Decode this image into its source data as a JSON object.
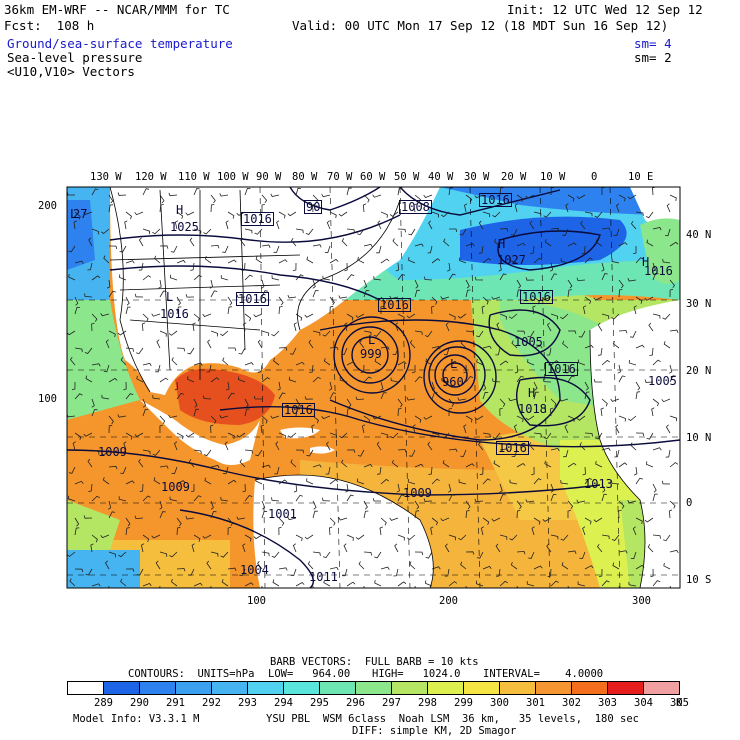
{
  "header": {
    "model": "36km EM-WRF -- NCAR/MMM for TC",
    "init": "Init: 12 UTC Wed 12 Sep 12",
    "fcst": "Fcst:  108 h",
    "valid": "Valid: 00 UTC Mon 17 Sep 12 (18 MDT Sun 16 Sep 12)"
  },
  "fields": [
    {
      "label": "Ground/sea-surface temperature",
      "sm": "sm= 4",
      "color": "#1a1acd"
    },
    {
      "label": "Sea-level pressure",
      "sm": "sm= 2",
      "color": "#000000"
    },
    {
      "label": "<U10,V10> Vectors",
      "sm": "",
      "color": "#000000"
    }
  ],
  "map": {
    "top_lon_labels": [
      "130 W",
      "120 W",
      "110 W",
      "100 W",
      "90 W",
      "80 W",
      "70 W",
      "60 W",
      "50 W",
      "40 W",
      "30 W",
      "20 W",
      "10 W",
      "0",
      "10 E"
    ],
    "right_lat_labels": [
      "40 N",
      "30 N",
      "20 N",
      "10 N",
      "0",
      "10 S"
    ],
    "left_grid_labels": [
      "200",
      "100"
    ],
    "bottom_grid_labels": [
      "100",
      "200",
      "300"
    ],
    "pressure_labels": [
      {
        "text": "H",
        "kind": "high"
      },
      {
        "text": "1025",
        "kind": "value"
      },
      {
        "text": "1016",
        "kind": "box"
      },
      {
        "text": "1008",
        "kind": "box"
      },
      {
        "text": "1016",
        "kind": "box"
      },
      {
        "text": "1016",
        "kind": "box"
      },
      {
        "text": "L",
        "kind": "low"
      },
      {
        "text": "1016",
        "kind": "value"
      },
      {
        "text": "1016",
        "kind": "box"
      },
      {
        "text": "H",
        "kind": "high"
      },
      {
        "text": "1027",
        "kind": "value"
      },
      {
        "text": "1016",
        "kind": "box"
      },
      {
        "text": "L",
        "kind": "low"
      },
      {
        "text": "999",
        "kind": "value"
      },
      {
        "text": "L",
        "kind": "low"
      },
      {
        "text": "960",
        "kind": "value"
      },
      {
        "text": "1005",
        "kind": "value"
      },
      {
        "text": "1016",
        "kind": "box"
      },
      {
        "text": "H",
        "kind": "high"
      },
      {
        "text": "1018",
        "kind": "value"
      },
      {
        "text": "1016",
        "kind": "box"
      },
      {
        "text": "1016",
        "kind": "box"
      },
      {
        "text": "1009",
        "kind": "value"
      },
      {
        "text": "1009",
        "kind": "value"
      },
      {
        "text": "1009",
        "kind": "value"
      },
      {
        "text": "1013",
        "kind": "value"
      },
      {
        "text": "1005",
        "kind": "value"
      },
      {
        "text": "1001",
        "kind": "value"
      },
      {
        "text": "1004",
        "kind": "value"
      },
      {
        "text": "1011",
        "kind": "value"
      },
      {
        "text": "H",
        "kind": "high"
      },
      {
        "text": "1016",
        "kind": "value"
      },
      {
        "text": "90",
        "kind": "box"
      },
      {
        "text": "L",
        "kind": "low"
      },
      {
        "text": "27",
        "kind": "value"
      }
    ]
  },
  "footer": {
    "barb_line": "BARB VECTORS:  FULL BARB = 10 kts",
    "contours_label": "CONTOURS:  UNITS=hPa",
    "low": "LOW=   964.00",
    "high": "HIGH=   1024.0",
    "interval": "INTERVAL=    4.0000",
    "colorbar": {
      "values": [
        "289",
        "290",
        "291",
        "292",
        "293",
        "294",
        "295",
        "296",
        "297",
        "298",
        "299",
        "300",
        "301",
        "302",
        "303",
        "304",
        "305"
      ],
      "unit": "K",
      "colors": [
        "#ffffff",
        "#1e64e6",
        "#2d82f0",
        "#3ca0f0",
        "#46b4f0",
        "#50d2f0",
        "#5ae6dc",
        "#6ee6b4",
        "#8ce68c",
        "#b4e664",
        "#dcf050",
        "#f5e646",
        "#f5be3c",
        "#f59632",
        "#f56e1e",
        "#e61e1e",
        "#f0a0a0"
      ]
    },
    "model_info": "Model Info: V3.3.1 M",
    "physics": "YSU PBL  WSM 6class  Noah LSM  36 km,   35 levels,  180 sec",
    "diffusion": "DIFF: simple KM, 2D Smagor"
  }
}
